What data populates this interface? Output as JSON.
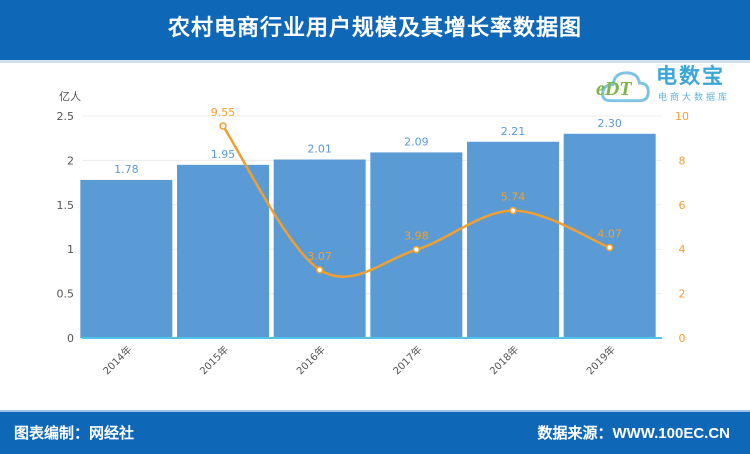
{
  "header": {
    "title": "农村电商行业用户规模及其增长率数据图"
  },
  "footer": {
    "left": "图表编制：网经社",
    "right": "数据来源：WWW.100EC.CN"
  },
  "logo": {
    "name": "电数宝",
    "sub": "电商大数据库",
    "mark": "eDT"
  },
  "colors": {
    "bar": "#5b9bd5",
    "line": "#f0a030",
    "header": "#0f67b8",
    "axis_line": "#4fc3e8"
  },
  "chart_data": {
    "type": "bar+line",
    "categories": [
      "2014年",
      "2015年",
      "2016年",
      "2017年",
      "2018年",
      "2019年"
    ],
    "series": [
      {
        "type": "bar",
        "axis": "left",
        "values": [
          1.78,
          1.95,
          2.01,
          2.09,
          2.21,
          2.3
        ],
        "labels": [
          "1.78",
          "1.95",
          "2.01",
          "2.09",
          "2.21",
          "2.30"
        ]
      },
      {
        "type": "line",
        "axis": "right",
        "values": [
          null,
          9.55,
          3.07,
          3.98,
          5.74,
          4.07
        ],
        "labels": [
          "",
          "9.55",
          "3.07",
          "3.98",
          "5.74",
          "4.07"
        ]
      }
    ],
    "ylabel": "亿人",
    "ylim": [
      0,
      2.5
    ],
    "yticks": [
      "0",
      "0.5",
      "1",
      "1.5",
      "2",
      "2.5"
    ],
    "y2lim": [
      0,
      10
    ],
    "y2ticks": [
      "0",
      "2",
      "4",
      "6",
      "8",
      "10"
    ],
    "grid": true
  }
}
